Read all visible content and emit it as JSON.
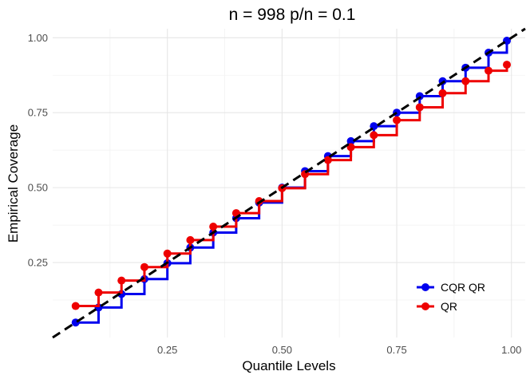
{
  "chart_data": {
    "type": "line",
    "title": "n = 998 p/n = 0.1",
    "xlabel": "Quantile Levels",
    "ylabel": "Empirical Coverage",
    "xlim": [
      0.0,
      1.03
    ],
    "ylim": [
      0.0,
      1.03
    ],
    "x_ticks": [
      0.25,
      0.5,
      0.75,
      1.0
    ],
    "x_tick_labels": [
      "0.25",
      "0.50",
      "0.75",
      "1.00"
    ],
    "y_ticks": [
      0.25,
      0.5,
      0.75,
      1.0
    ],
    "y_tick_labels": [
      "0.25",
      "0.50",
      "0.75",
      "1.00"
    ],
    "grid": true,
    "legend_position": "bottom-right",
    "reference_line": {
      "style": "dashed",
      "color": "#000000",
      "from": [
        0,
        0
      ],
      "to": [
        1.03,
        1.03
      ]
    },
    "x": [
      0.05,
      0.1,
      0.15,
      0.2,
      0.25,
      0.3,
      0.35,
      0.4,
      0.45,
      0.5,
      0.55,
      0.6,
      0.65,
      0.7,
      0.75,
      0.8,
      0.85,
      0.9,
      0.95,
      0.99
    ],
    "series": [
      {
        "name": "CQR QR",
        "color": "#0000ee",
        "values": [
          0.05,
          0.1,
          0.145,
          0.195,
          0.248,
          0.3,
          0.35,
          0.398,
          0.45,
          0.5,
          0.555,
          0.605,
          0.655,
          0.705,
          0.75,
          0.805,
          0.855,
          0.9,
          0.95,
          0.99
        ]
      },
      {
        "name": "QR",
        "color": "#ee0000",
        "values": [
          0.105,
          0.15,
          0.19,
          0.235,
          0.28,
          0.325,
          0.37,
          0.415,
          0.455,
          0.498,
          0.545,
          0.592,
          0.635,
          0.675,
          0.725,
          0.768,
          0.815,
          0.855,
          0.89,
          0.91
        ]
      }
    ]
  }
}
